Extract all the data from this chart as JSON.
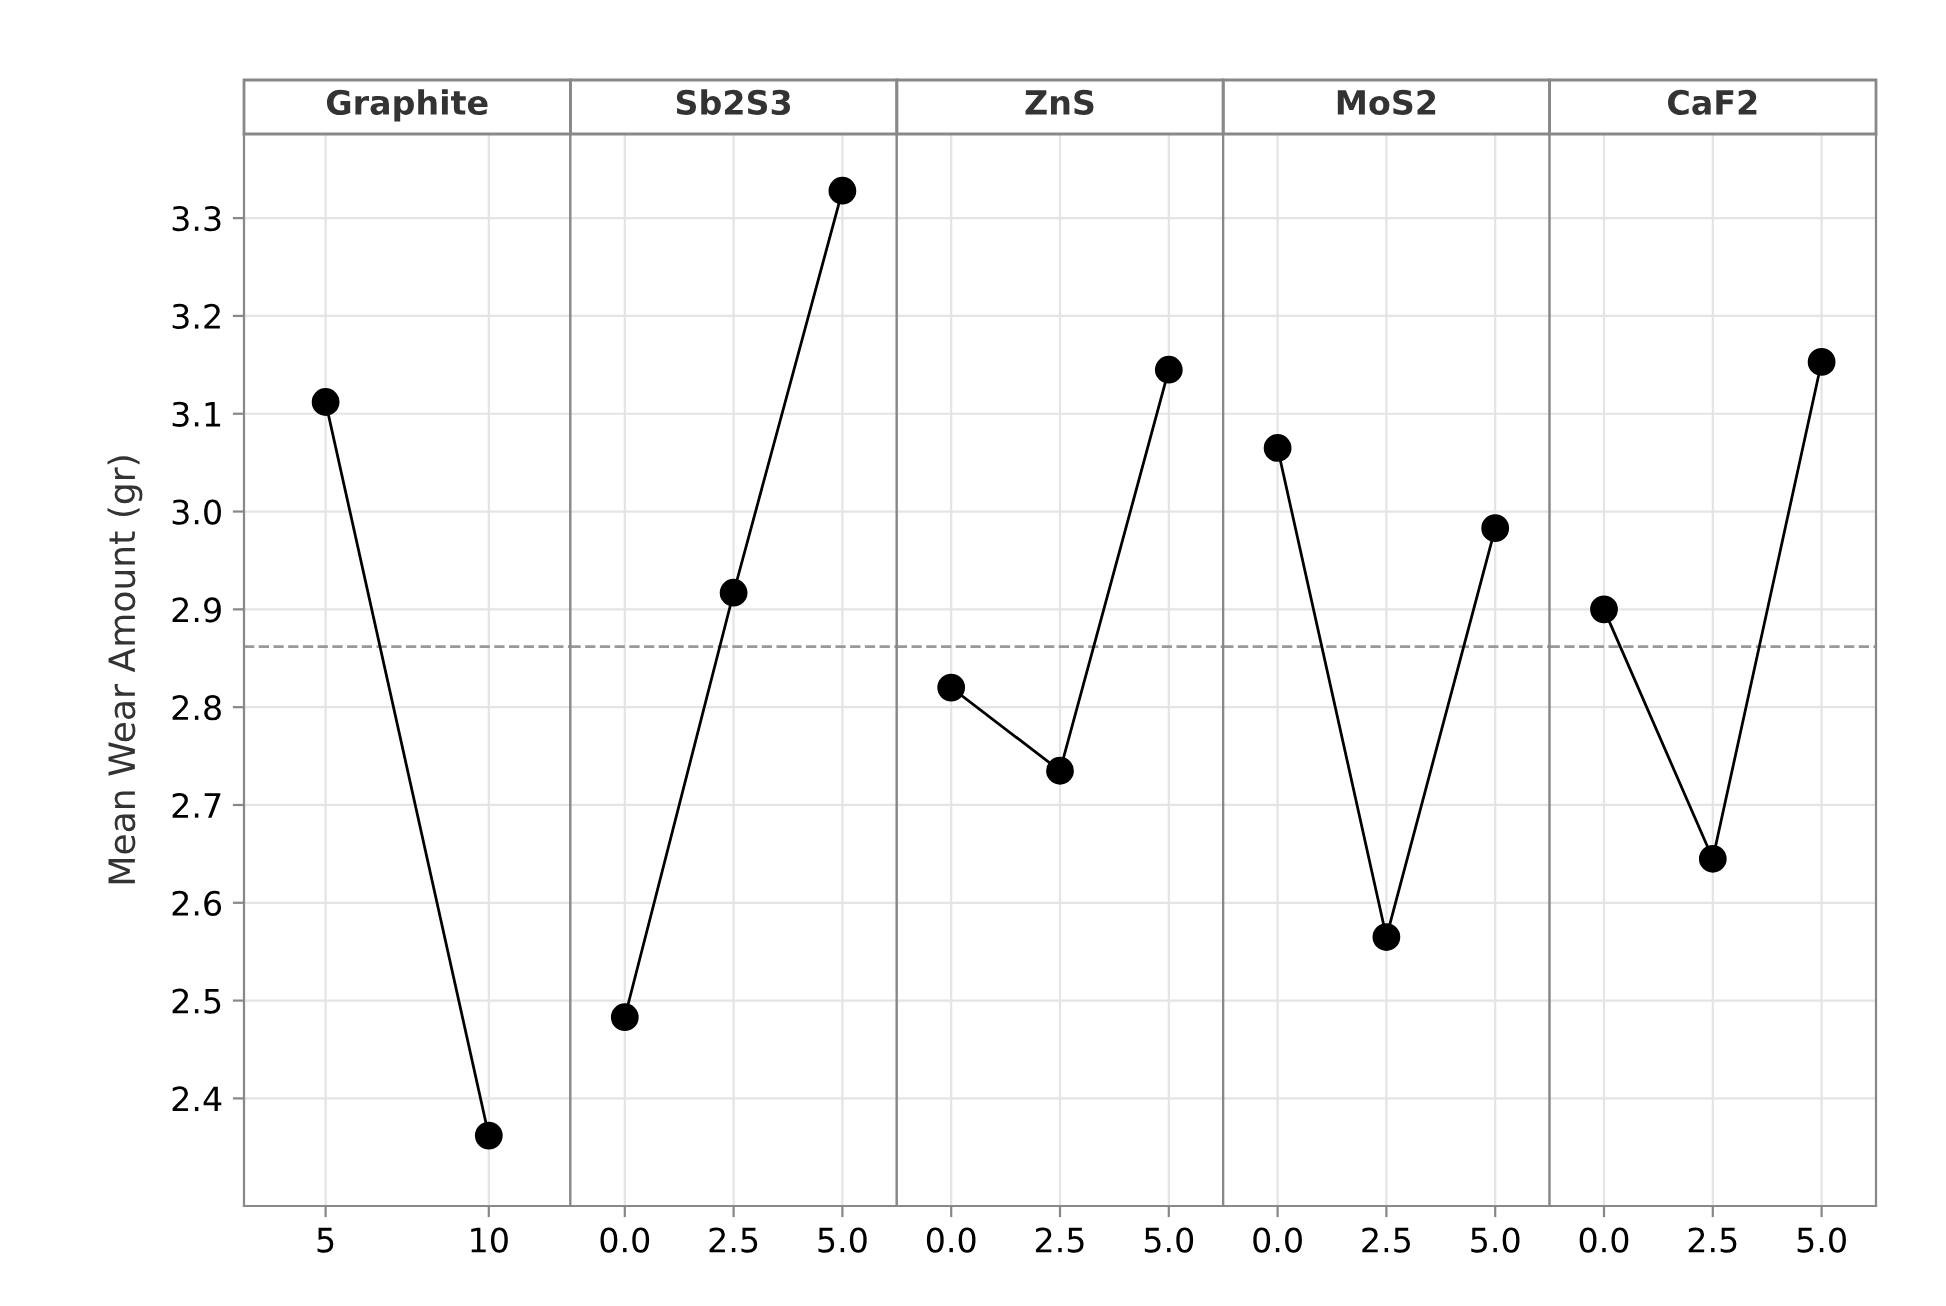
{
  "chart_data": [
    {
      "type": "line",
      "title": "Graphite",
      "ylabel": "Mean Wear Amount (gr)",
      "categories": [
        "5",
        "10"
      ],
      "values": [
        3.112,
        2.362
      ],
      "color": "#000000",
      "marker": "circle",
      "line_style": "solid",
      "ylim": [
        2.29,
        3.386
      ],
      "yticks": [
        2.4,
        2.5,
        2.6,
        2.7,
        2.8,
        2.9,
        {
          "value": 3.0,
          "label": "3.0"
        },
        3.1,
        3.2,
        3.3
      ],
      "grid": true,
      "ref_lines": [
        {
          "axis": "y",
          "value": 2.862,
          "color": "#999999",
          "line_style": "dashed"
        }
      ]
    },
    {
      "type": "line",
      "title": "Sb2S3",
      "categories": [
        "0.0",
        "2.5",
        "5.0"
      ],
      "values": [
        2.483,
        2.917,
        3.328
      ],
      "color": "#000000",
      "marker": "circle",
      "line_style": "solid",
      "ylim": [
        2.29,
        3.386
      ],
      "yticks": [
        {
          "value": 2.4,
          "label": null
        },
        {
          "value": 2.5,
          "label": null
        },
        {
          "value": 2.6,
          "label": null
        },
        {
          "value": 2.7,
          "label": null
        },
        {
          "value": 2.8,
          "label": null
        },
        {
          "value": 2.9,
          "label": null
        },
        {
          "value": 3.0,
          "label": null
        },
        {
          "value": 3.1,
          "label": null
        },
        {
          "value": 3.2,
          "label": null
        },
        {
          "value": 3.3,
          "label": null
        }
      ],
      "tick_labels": "x",
      "grid": true,
      "ref_lines": [
        {
          "axis": "y",
          "value": 2.862,
          "color": "#999999",
          "line_style": "dashed"
        }
      ]
    },
    {
      "type": "line",
      "title": "ZnS",
      "categories": [
        "0.0",
        "2.5",
        "5.0"
      ],
      "values": [
        2.82,
        2.735,
        3.145
      ],
      "color": "#000000",
      "marker": "circle",
      "line_style": "solid",
      "ylim": [
        2.29,
        3.386
      ],
      "yticks": [
        {
          "value": 2.4,
          "label": null
        },
        {
          "value": 2.5,
          "label": null
        },
        {
          "value": 2.6,
          "label": null
        },
        {
          "value": 2.7,
          "label": null
        },
        {
          "value": 2.8,
          "label": null
        },
        {
          "value": 2.9,
          "label": null
        },
        {
          "value": 3.0,
          "label": null
        },
        {
          "value": 3.1,
          "label": null
        },
        {
          "value": 3.2,
          "label": null
        },
        {
          "value": 3.3,
          "label": null
        }
      ],
      "tick_labels": "x",
      "grid": true,
      "ref_lines": [
        {
          "axis": "y",
          "value": 2.862,
          "color": "#999999",
          "line_style": "dashed"
        }
      ]
    },
    {
      "type": "line",
      "title": "MoS2",
      "categories": [
        "0.0",
        "2.5",
        "5.0"
      ],
      "values": [
        3.065,
        2.565,
        2.983
      ],
      "color": "#000000",
      "marker": "circle",
      "line_style": "solid",
      "ylim": [
        2.29,
        3.386
      ],
      "yticks": [
        {
          "value": 2.4,
          "label": null
        },
        {
          "value": 2.5,
          "label": null
        },
        {
          "value": 2.6,
          "label": null
        },
        {
          "value": 2.7,
          "label": null
        },
        {
          "value": 2.8,
          "label": null
        },
        {
          "value": 2.9,
          "label": null
        },
        {
          "value": 3.0,
          "label": null
        },
        {
          "value": 3.1,
          "label": null
        },
        {
          "value": 3.2,
          "label": null
        },
        {
          "value": 3.3,
          "label": null
        }
      ],
      "tick_labels": "x",
      "grid": true,
      "ref_lines": [
        {
          "axis": "y",
          "value": 2.862,
          "color": "#999999",
          "line_style": "dashed"
        }
      ]
    },
    {
      "type": "line",
      "title": "CaF2",
      "categories": [
        "0.0",
        "2.5",
        "5.0"
      ],
      "values": [
        2.9,
        2.645,
        3.153
      ],
      "color": "#000000",
      "marker": "circle",
      "line_style": "solid",
      "ylim": [
        2.29,
        3.386
      ],
      "yticks": [
        {
          "value": 2.4,
          "label": null
        },
        {
          "value": 2.5,
          "label": null
        },
        {
          "value": 2.6,
          "label": null
        },
        {
          "value": 2.7,
          "label": null
        },
        {
          "value": 2.8,
          "label": null
        },
        {
          "value": 2.9,
          "label": null
        },
        {
          "value": 3.0,
          "label": null
        },
        {
          "value": 3.1,
          "label": null
        },
        {
          "value": 3.2,
          "label": null
        },
        {
          "value": 3.3,
          "label": null
        }
      ],
      "tick_labels": "x",
      "grid": true,
      "ref_lines": [
        {
          "axis": "y",
          "value": 2.862,
          "color": "#999999",
          "line_style": "dashed"
        }
      ]
    }
  ]
}
